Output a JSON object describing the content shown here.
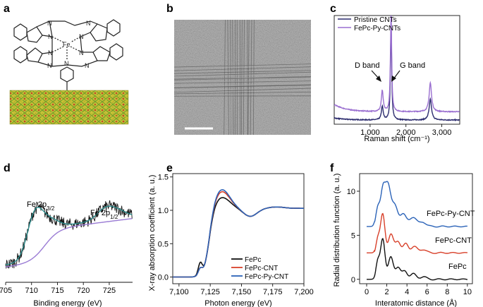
{
  "panels": {
    "a": {
      "label": "a",
      "metal": "Fe"
    },
    "b": {
      "label": "b"
    },
    "c": {
      "label": "c"
    },
    "d": {
      "label": "d"
    },
    "e": {
      "label": "e"
    },
    "f": {
      "label": "f"
    }
  },
  "colors": {
    "black": "#111111",
    "red": "#d8402a",
    "blue": "#2b63b8",
    "purple": "#9a6fd0",
    "navy": "#2c2c6e",
    "teal": "#2a8a8a",
    "lavender": "#9a7bd4"
  },
  "chart_data": [
    {
      "panel": "c",
      "type": "line",
      "xlabel": "Raman shift (cm⁻¹)",
      "ylabel": "",
      "xticks": [
        "1,000",
        "2,000",
        "3,000"
      ],
      "xtick_values": [
        1000,
        2000,
        3000
      ],
      "xlim": [
        0,
        3500
      ],
      "ylim": [
        0,
        1.05
      ],
      "annotations": [
        "D band",
        "G band"
      ],
      "legend": [
        "Pristine CNTs",
        "FePc-Py-CNTs"
      ],
      "series": [
        {
          "name": "Pristine CNTs",
          "color": "#2c2c6e",
          "baseline": 0.04,
          "peaks": [
            [
              1340,
              0.13,
              30
            ],
            [
              1585,
              0.93,
              20
            ],
            [
              2680,
              0.2,
              40
            ]
          ]
        },
        {
          "name": "FePc-Py-CNTs",
          "color": "#9a6fd0",
          "baseline": 0.12,
          "peaks": [
            [
              1340,
              0.2,
              30
            ],
            [
              1585,
              0.96,
              20
            ],
            [
              2680,
              0.28,
              40
            ]
          ]
        }
      ]
    },
    {
      "panel": "d",
      "type": "line",
      "xlabel": "Binding energy (eV)",
      "ylabel": "",
      "xticks": [
        "705",
        "710",
        "715",
        "720",
        "725"
      ],
      "xtick_values": [
        705,
        710,
        715,
        720,
        725
      ],
      "xlim": [
        705,
        729.5
      ],
      "ylim": [
        0,
        1
      ],
      "annotations": [
        {
          "main": "Fe 2p",
          "sub": "3/2"
        },
        {
          "main": "Fe 2p",
          "sub": "1/2"
        }
      ],
      "series": [
        {
          "name": "data",
          "color": "#111111"
        },
        {
          "name": "fit",
          "color": "#2a8a8a"
        },
        {
          "name": "background",
          "color": "#9a7bd4"
        }
      ]
    },
    {
      "panel": "e",
      "type": "line",
      "xlabel": "Photon energy (eV)",
      "ylabel": "X-ray absorption coefficient (a. u.)",
      "xticks": [
        "7,100",
        "7,125",
        "7,150",
        "7,175",
        "7,200"
      ],
      "xtick_values": [
        7100,
        7125,
        7150,
        7175,
        7200
      ],
      "yticks": [
        "0.0",
        "0.5",
        "1.0",
        "1.5"
      ],
      "ytick_values": [
        0,
        0.5,
        1.0,
        1.5
      ],
      "xlim": [
        7095,
        7200
      ],
      "ylim": [
        -0.1,
        1.55
      ],
      "legend": [
        "FePc",
        "FePc-CNT",
        "FePc-Py-CNT"
      ],
      "series": [
        {
          "name": "FePc",
          "color": "#111111",
          "peak": 1.2
        },
        {
          "name": "FePc-CNT",
          "color": "#d8402a",
          "peak": 1.29
        },
        {
          "name": "FePc-Py-CNT",
          "color": "#2b63b8",
          "peak": 1.32
        }
      ]
    },
    {
      "panel": "f",
      "type": "line",
      "xlabel": "Interatomic distance (Å)",
      "ylabel": "Radial distribution function (a. u.)",
      "xticks": [
        "0",
        "2",
        "4",
        "6",
        "8",
        "10"
      ],
      "xtick_values": [
        0,
        2,
        4,
        6,
        8,
        10
      ],
      "yticks": [
        "0",
        "5",
        "10"
      ],
      "ytick_values": [
        0,
        5,
        10
      ],
      "xlim": [
        -0.7,
        10.5
      ],
      "ylim": [
        -0.5,
        12
      ],
      "series": [
        {
          "name": "FePc-Py-CNT",
          "color": "#2b63b8",
          "offset": 6.0
        },
        {
          "name": "FePc-CNT",
          "color": "#d8402a",
          "offset": 3.0
        },
        {
          "name": "FePc",
          "color": "#111111",
          "offset": 0.0
        }
      ]
    }
  ]
}
